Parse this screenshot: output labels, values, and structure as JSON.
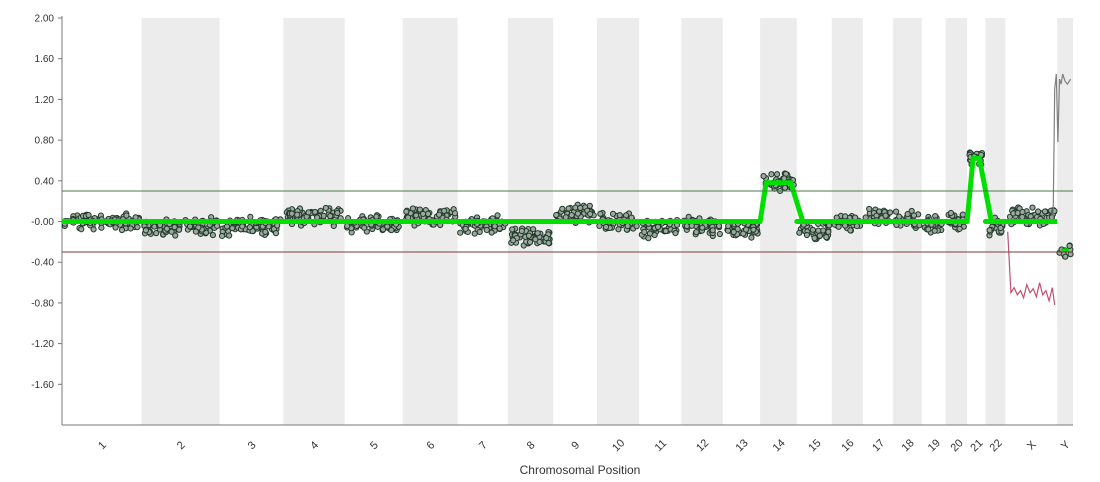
{
  "chart_data": {
    "type": "scatter",
    "title": "",
    "xlabel": "Chromosomal Position",
    "ylabel": "",
    "ylim": [
      -2.0,
      2.0
    ],
    "yticks": [
      "2.00",
      "1.60",
      "1.20",
      "0.80",
      "0.40",
      "-0.00",
      "-0.40",
      "-0.80",
      "-1.20",
      "-1.60"
    ],
    "ytick_values": [
      2.0,
      1.6,
      1.2,
      0.8,
      0.4,
      0.0,
      -0.4,
      -0.8,
      -1.2,
      -1.6
    ],
    "threshold_upper": 0.3,
    "threshold_lower": -0.3,
    "grid": false,
    "chromosomes": [
      {
        "label": "1",
        "start": 0.0,
        "end": 1.0,
        "segment": 0.0
      },
      {
        "label": "2",
        "start": 1.0,
        "end": 1.98,
        "segment": -0.05
      },
      {
        "label": "3",
        "start": 1.98,
        "end": 2.78,
        "segment": -0.05
      },
      {
        "label": "4",
        "start": 2.78,
        "end": 3.55,
        "segment": 0.05
      },
      {
        "label": "5",
        "start": 3.55,
        "end": 4.28,
        "segment": -0.02
      },
      {
        "label": "6",
        "start": 4.28,
        "end": 4.97,
        "segment": 0.05
      },
      {
        "label": "7",
        "start": 4.97,
        "end": 5.6,
        "segment": -0.03
      },
      {
        "label": "8",
        "start": 5.6,
        "end": 6.17,
        "segment": -0.15
      },
      {
        "label": "9",
        "start": 6.17,
        "end": 6.72,
        "segment": 0.08
      },
      {
        "label": "10",
        "start": 6.72,
        "end": 7.25,
        "segment": 0.0
      },
      {
        "label": "11",
        "start": 7.25,
        "end": 7.78,
        "segment": -0.07
      },
      {
        "label": "12",
        "start": 7.78,
        "end": 8.3,
        "segment": -0.05
      },
      {
        "label": "13",
        "start": 8.3,
        "end": 8.77,
        "segment": -0.08
      },
      {
        "label": "14",
        "start": 8.77,
        "end": 9.23,
        "segment": 0.38
      },
      {
        "label": "15",
        "start": 9.23,
        "end": 9.67,
        "segment": -0.1
      },
      {
        "label": "16",
        "start": 9.67,
        "end": 10.06,
        "segment": 0.0
      },
      {
        "label": "17",
        "start": 10.06,
        "end": 10.44,
        "segment": 0.05
      },
      {
        "label": "18",
        "start": 10.44,
        "end": 10.8,
        "segment": 0.02
      },
      {
        "label": "19",
        "start": 10.8,
        "end": 11.1,
        "segment": -0.03
      },
      {
        "label": "20",
        "start": 11.1,
        "end": 11.37,
        "segment": 0.0
      },
      {
        "label": "21",
        "start": 11.37,
        "end": 11.6,
        "segment": 0.62
      },
      {
        "label": "22",
        "start": 11.6,
        "end": 11.85,
        "segment": -0.05
      },
      {
        "label": "X",
        "start": 11.85,
        "end": 12.5,
        "segment": 0.05
      },
      {
        "label": "Y",
        "start": 12.5,
        "end": 12.7,
        "segment": -0.28
      }
    ],
    "x_total": 12.7,
    "series": [
      {
        "kind": "points",
        "color": "#1f3a2a",
        "fill": "#9ea89e"
      },
      {
        "kind": "segment-line",
        "color": "#00e000"
      },
      {
        "kind": "reference-x-gain",
        "color": "#808080",
        "x": [
          12.45,
          12.47,
          12.49,
          12.51,
          12.53,
          12.55,
          12.57,
          12.6,
          12.63,
          12.67
        ],
        "y": [
          0.0,
          1.3,
          1.45,
          0.78,
          1.4,
          1.35,
          1.45,
          1.38,
          1.35,
          1.4
        ]
      },
      {
        "kind": "reference-x-loss",
        "color": "#c05070",
        "x": [
          11.88,
          11.92,
          11.96,
          12.0,
          12.04,
          12.08,
          12.12,
          12.16,
          12.2,
          12.24,
          12.28,
          12.32,
          12.36,
          12.4,
          12.44,
          12.47
        ],
        "y": [
          -0.1,
          -0.7,
          -0.65,
          -0.72,
          -0.68,
          -0.75,
          -0.62,
          -0.7,
          -0.66,
          -0.74,
          -0.6,
          -0.72,
          -0.68,
          -0.78,
          -0.65,
          -0.82
        ]
      }
    ]
  },
  "colors": {
    "band": "#ececec",
    "threshold_upper": "#4a7a4a",
    "threshold_lower": "#7a3a3a",
    "axis": "#777777"
  }
}
